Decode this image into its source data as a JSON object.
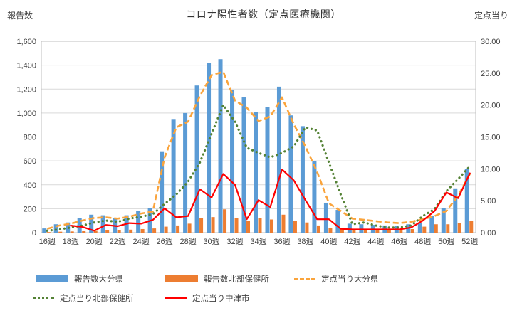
{
  "title": "コロナ陽性者数（定点医療機関）",
  "left_axis_unit": "報告数",
  "right_axis_unit": "定点当り",
  "legend": [
    {
      "label": "報告数大分県"
    },
    {
      "label": "報告数北部保健所"
    },
    {
      "label": "定点当り大分県"
    },
    {
      "label": "定点当り北部保健所"
    },
    {
      "label": "定点当り中津市"
    }
  ],
  "colors": {
    "bar_oita": "#5B9BD5",
    "bar_hokubu": "#ED7D31",
    "line_oita": "#FAA43C",
    "line_hokubu": "#548235",
    "line_nakatsu": "#FF0000",
    "grid": "#D9D9D9",
    "border": "#BFBFBF",
    "text": "#404040"
  },
  "chart_data": {
    "type": "combo-bar-line",
    "title": "コロナ陽性者数（定点医療機関）",
    "x_weeks": [
      16,
      17,
      18,
      19,
      20,
      21,
      22,
      23,
      24,
      25,
      26,
      27,
      28,
      29,
      30,
      31,
      32,
      33,
      34,
      35,
      36,
      37,
      38,
      39,
      40,
      41,
      42,
      43,
      44,
      45,
      46,
      47,
      48,
      49,
      50,
      51,
      52
    ],
    "x_tick_labels": [
      "16週",
      "18週",
      "20週",
      "22週",
      "24週",
      "26週",
      "28週",
      "30週",
      "32週",
      "34週",
      "36週",
      "38週",
      "40週",
      "42週",
      "44週",
      "46週",
      "48週",
      "50週",
      "52週"
    ],
    "left_axis": {
      "label": "報告数",
      "min": 0,
      "max": 1600,
      "tick_interval": 200,
      "ticks": [
        "0",
        "200",
        "400",
        "600",
        "800",
        "1,000",
        "1,200",
        "1,400",
        "1,600"
      ]
    },
    "right_axis": {
      "label": "定点当り",
      "min": 0,
      "max": 30,
      "tick_interval": 5,
      "ticks": [
        "0.00",
        "5.00",
        "10.00",
        "15.00",
        "20.00",
        "25.00",
        "30.00"
      ]
    },
    "grid": true,
    "legend_position": "bottom",
    "series": [
      {
        "name": "報告数大分県",
        "type": "bar",
        "axis": "left",
        "color": "#5B9BD5",
        "values": [
          35,
          70,
          85,
          120,
          150,
          145,
          120,
          145,
          180,
          205,
          680,
          950,
          1000,
          1230,
          1420,
          1450,
          1190,
          1130,
          1010,
          1050,
          1220,
          980,
          890,
          600,
          250,
          190,
          75,
          70,
          65,
          60,
          55,
          70,
          80,
          140,
          205,
          370,
          530
        ]
      },
      {
        "name": "報告数北部保健所",
        "type": "bar",
        "axis": "left",
        "color": "#ED7D31",
        "values": [
          5,
          8,
          10,
          12,
          15,
          18,
          20,
          25,
          30,
          35,
          50,
          60,
          75,
          120,
          130,
          195,
          120,
          100,
          120,
          110,
          150,
          100,
          85,
          60,
          40,
          30,
          30,
          30,
          25,
          25,
          20,
          30,
          50,
          70,
          70,
          80,
          100
        ]
      },
      {
        "name": "定点当り大分県",
        "type": "line",
        "style": "dashed",
        "axis": "right",
        "color": "#FAA43C",
        "values": [
          0.6,
          1.1,
          1.4,
          1.9,
          2.3,
          2.4,
          2.2,
          2.5,
          3.0,
          3.3,
          11.8,
          16.5,
          17.4,
          21.4,
          24.7,
          25.2,
          20.7,
          19.6,
          17.5,
          18.2,
          21.2,
          17.0,
          13.5,
          9.5,
          4.6,
          3.4,
          2.2,
          2.0,
          1.8,
          1.6,
          1.5,
          1.7,
          2.1,
          2.6,
          3.4,
          5.8,
          9.2
        ]
      },
      {
        "name": "定点当り北部保健所",
        "type": "line",
        "style": "dotted",
        "axis": "right",
        "color": "#548235",
        "values": [
          0.3,
          0.5,
          0.8,
          1.1,
          1.6,
          1.9,
          1.7,
          2.2,
          2.5,
          2.9,
          4.5,
          6.0,
          8.0,
          11.0,
          15.5,
          20.0,
          17.4,
          13.3,
          12.5,
          11.8,
          12.5,
          13.5,
          16.5,
          16.0,
          11.0,
          6.0,
          1.3,
          1.6,
          1.1,
          0.8,
          0.8,
          1.1,
          2.6,
          3.7,
          6.5,
          8.4,
          10.4
        ]
      },
      {
        "name": "定点当り中津市",
        "type": "line",
        "style": "solid",
        "axis": "right",
        "color": "#FF0000",
        "values": [
          null,
          null,
          1.1,
          0.9,
          0.3,
          1.2,
          1.0,
          1.5,
          1.4,
          2.0,
          3.8,
          2.4,
          2.6,
          6.8,
          5.5,
          9.2,
          7.5,
          2.1,
          5.1,
          4.0,
          9.9,
          8.2,
          5.1,
          2.1,
          2.1,
          0.6,
          0.5,
          0.5,
          0.5,
          0.5,
          0.5,
          0.8,
          1.9,
          3.4,
          6.3,
          5.4,
          9.3
        ]
      }
    ]
  }
}
